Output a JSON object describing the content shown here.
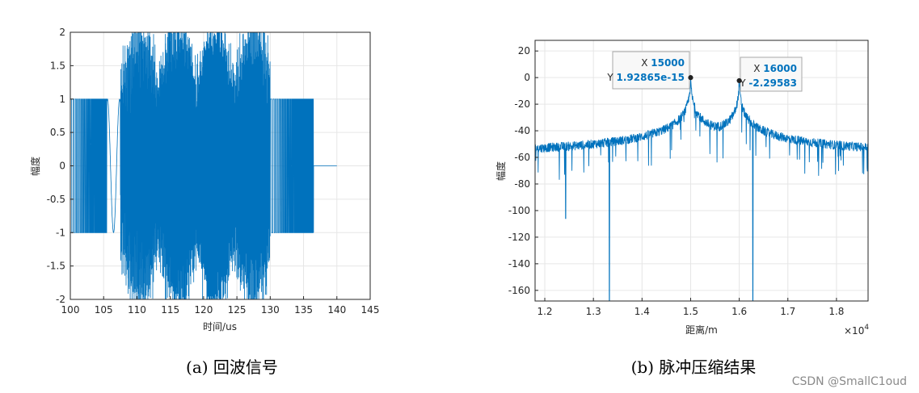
{
  "colors": {
    "line": "#0072BD",
    "grid": "#e6e6e6",
    "axis": "#262626",
    "tip_value": "#0072BD"
  },
  "watermark": "CSDN @SmallC1oud",
  "chart_data": [
    {
      "type": "line",
      "caption": "(a) 回波信号",
      "xlabel": "时间/us",
      "ylabel": "幅度",
      "xlim": [
        100,
        145
      ],
      "ylim": [
        -2,
        2
      ],
      "xticks": [
        100,
        105,
        110,
        115,
        120,
        125,
        130,
        135,
        140,
        145
      ],
      "yticks": [
        -2,
        -1.5,
        -1,
        -0.5,
        0,
        0.5,
        1,
        1.5,
        2
      ],
      "grid": true,
      "signal": {
        "segments": [
          {
            "x_start": 100,
            "x_end": 105.5,
            "kind": "square-chirp",
            "amplitude": 1
          },
          {
            "x_start": 105.5,
            "x_end": 107.5,
            "kind": "slow-oscillation",
            "amplitude": 1
          },
          {
            "x_start": 107.5,
            "x_end": 130,
            "kind": "overlapping-echoes",
            "amplitude": 2.2
          },
          {
            "x_start": 130,
            "x_end": 136.5,
            "kind": "square-chirp",
            "amplitude": 1
          },
          {
            "x_start": 136.5,
            "x_end": 140,
            "kind": "zero",
            "amplitude": 0
          }
        ]
      }
    },
    {
      "type": "line",
      "caption": "(b) 脉冲压缩结果",
      "xlabel": "距离/m",
      "ylabel": "幅度",
      "x_exponent_label": "×10",
      "x_exponent": "4",
      "xlim": [
        1.18,
        1.865
      ],
      "ylim": [
        -168,
        28
      ],
      "xticks": [
        1.2,
        1.3,
        1.4,
        1.5,
        1.6,
        1.7,
        1.8
      ],
      "yticks": [
        -160,
        -140,
        -120,
        -100,
        -80,
        -60,
        -40,
        -20,
        0,
        20
      ],
      "grid": true,
      "noise_floor": -58,
      "peaks": [
        {
          "x": 1.5,
          "y": 0
        },
        {
          "x": 1.6,
          "y": -2.3
        }
      ],
      "deep_nulls": [
        {
          "x": 1.243,
          "y": -106
        },
        {
          "x": 1.333,
          "y": -168
        },
        {
          "x": 1.628,
          "y": -168
        }
      ],
      "datatips": [
        {
          "x_label": "X",
          "x_value": "15000",
          "y_label": "Y",
          "y_value": "1.92865e-15",
          "point_x": 1.5,
          "point_y": 0
        },
        {
          "x_label": "X",
          "x_value": "16000",
          "y_label": "Y",
          "y_value": "-2.29583",
          "point_x": 1.6,
          "point_y": -2.29583
        }
      ]
    }
  ]
}
